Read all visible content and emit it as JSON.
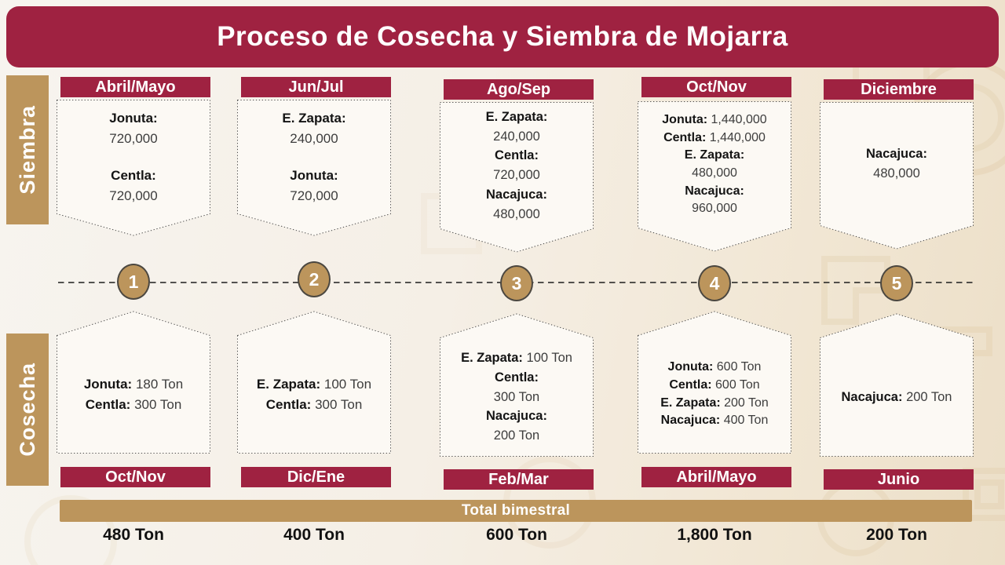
{
  "title": "Proceso de Cosecha y Siembra de Mojarra",
  "side_labels": {
    "siembra": "Siembra",
    "cosecha": "Cosecha"
  },
  "total_bar_label": "Total bimestral",
  "colors": {
    "maroon": "#9f2241",
    "gold": "#bc955c",
    "page_background": "#f5efe6",
    "box_fill": "#fcf9f4",
    "label_text": "#141414",
    "value_text": "#3d3d3d"
  },
  "columns": [
    {
      "step": "1",
      "siembra": {
        "month": "Abril/Mayo",
        "spaced": true,
        "entries": [
          {
            "name": "Jonuta:",
            "value": "720,000"
          },
          {
            "name": "Centla:",
            "value": "720,000"
          }
        ]
      },
      "cosecha": {
        "month": "Oct/Nov",
        "entries": [
          {
            "name": "Jonuta:",
            "value": "180 Ton",
            "inline": true
          },
          {
            "name": "Centla:",
            "value": "300 Ton",
            "inline": true
          }
        ]
      },
      "total": "480 Ton"
    },
    {
      "step": "2",
      "siembra": {
        "month": "Jun/Jul",
        "spaced": true,
        "entries": [
          {
            "name": "E. Zapata:",
            "value": "240,000"
          },
          {
            "name": "Jonuta:",
            "value": "720,000"
          }
        ]
      },
      "cosecha": {
        "month": "Dic/Ene",
        "entries": [
          {
            "name": "E. Zapata:",
            "value": "100 Ton",
            "inline": true
          },
          {
            "name": "Centla:",
            "value": "300 Ton",
            "inline": true
          }
        ]
      },
      "total": "400 Ton"
    },
    {
      "step": "3",
      "siembra": {
        "month": "Ago/Sep",
        "entries": [
          {
            "name": "E. Zapata:",
            "value": "240,000"
          },
          {
            "name": "Centla:",
            "value": "720,000"
          },
          {
            "name": "Nacajuca:",
            "value": "480,000"
          }
        ]
      },
      "cosecha": {
        "month": "Feb/Mar",
        "entries": [
          {
            "name": "E. Zapata:",
            "value": "100 Ton",
            "inline": true
          },
          {
            "name": "Centla:",
            "value": "300 Ton"
          },
          {
            "name": "Nacajuca:",
            "value": "200 Ton"
          }
        ]
      },
      "total": "600 Ton"
    },
    {
      "step": "4",
      "siembra": {
        "month": "Oct/Nov",
        "entries": [
          {
            "name": "Jonuta:",
            "value": "1,440,000",
            "inline": true
          },
          {
            "name": "Centla:",
            "value": "1,440,000",
            "inline": true
          },
          {
            "name": "E. Zapata:",
            "value": "480,000"
          },
          {
            "name": "Nacajuca:",
            "value": "960,000"
          }
        ]
      },
      "cosecha": {
        "month": "Abril/Mayo",
        "entries": [
          {
            "name": "Jonuta:",
            "value": "600 Ton",
            "inline": true
          },
          {
            "name": "Centla:",
            "value": "600 Ton",
            "inline": true
          },
          {
            "name": "E. Zapata:",
            "value": "200 Ton",
            "inline": true
          },
          {
            "name": "Nacajuca:",
            "value": "400 Ton",
            "inline": true
          }
        ]
      },
      "total": "1,800 Ton"
    },
    {
      "step": "5",
      "siembra": {
        "month": "Diciembre",
        "entries": [
          {
            "name": "Nacajuca:",
            "value": "480,000"
          }
        ]
      },
      "cosecha": {
        "month": "Junio",
        "entries": [
          {
            "name": "Nacajuca:",
            "value": "200 Ton",
            "inline": true
          }
        ]
      },
      "total": "200 Ton"
    }
  ]
}
